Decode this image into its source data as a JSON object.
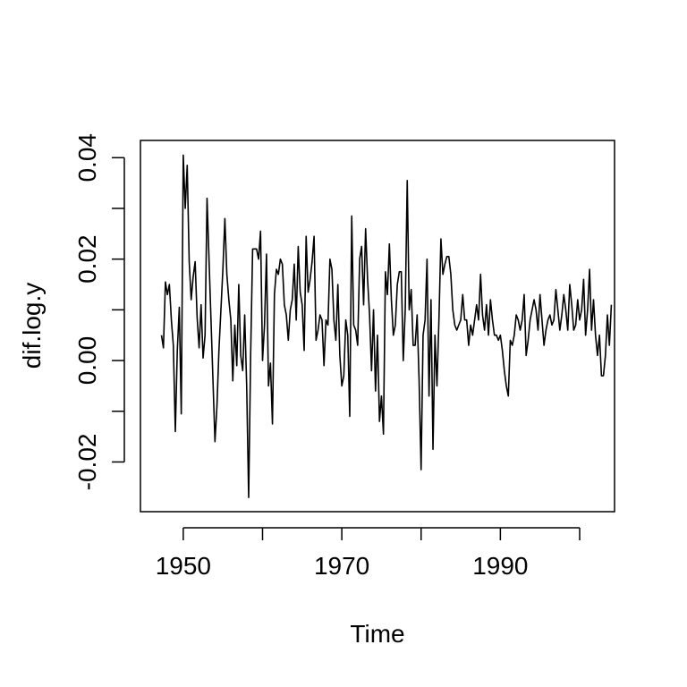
{
  "chart_data": {
    "type": "line",
    "title": "",
    "xlabel": "Time",
    "ylabel": "dif.log.y",
    "xlim": [
      1944.6,
      2004.4
    ],
    "ylim": [
      -0.0298,
      0.0434
    ],
    "x_ticks": [
      1950,
      1960,
      1970,
      1980,
      1990,
      2000
    ],
    "x_tick_labels": [
      "1950",
      "",
      "1970",
      "",
      "1990",
      ""
    ],
    "y_ticks": [
      -0.02,
      -0.01,
      0.0,
      0.01,
      0.02,
      0.03,
      0.04
    ],
    "y_tick_labels": [
      "-0.02",
      "",
      "0.00",
      "",
      "0.02",
      "",
      "0.04"
    ],
    "grid": false,
    "legend": "none",
    "line_color": "#000000",
    "series": [
      {
        "x_start": 1947.25,
        "x_step": 0.25,
        "values": [
          0.005,
          0.0025,
          0.0155,
          0.013,
          0.015,
          0.008,
          0.003,
          -0.014,
          0.002,
          0.0105,
          -0.0105,
          0.0405,
          0.03,
          0.0385,
          0.0195,
          0.012,
          0.0165,
          0.0195,
          0.0085,
          0.0025,
          0.011,
          0.0005,
          0.005,
          0.032,
          0.02,
          0.008,
          -0.004,
          -0.016,
          -0.009,
          0.002,
          0.01,
          0.018,
          0.028,
          0.017,
          0.012,
          0.008,
          -0.004,
          0.007,
          -0.001,
          0.015,
          0.001,
          -0.002,
          0.009,
          -0.005,
          -0.027,
          0.001,
          0.022,
          0.022,
          0.022,
          0.02,
          0.0255,
          0.0,
          0.007,
          0.021,
          -0.005,
          -0.0005,
          -0.0125,
          0.013,
          0.018,
          0.017,
          0.02,
          0.019,
          0.011,
          0.009,
          0.004,
          0.01,
          0.012,
          0.019,
          0.008,
          0.0225,
          0.0135,
          0.011,
          0.002,
          0.0245,
          0.0135,
          0.016,
          0.0195,
          0.0245,
          0.004,
          0.006,
          0.009,
          0.008,
          -0.001,
          0.008,
          0.007,
          0.02,
          0.018,
          0.008,
          0.004,
          0.015,
          0.001,
          -0.005,
          -0.003,
          0.008,
          0.005,
          -0.011,
          0.0285,
          0.007,
          0.006,
          0.003,
          0.02,
          0.0225,
          0.011,
          0.026,
          0.016,
          0.009,
          -0.002,
          0.01,
          -0.006,
          0.005,
          -0.012,
          -0.007,
          -0.0145,
          0.0175,
          0.013,
          0.023,
          0.012,
          0.005,
          0.007,
          0.015,
          0.0175,
          0.0175,
          0.0,
          0.01,
          0.0355,
          0.01,
          0.014,
          0.003,
          0.003,
          0.009,
          -0.004,
          -0.0215,
          0.005,
          0.008,
          0.02,
          -0.007,
          0.012,
          -0.0175,
          0.005,
          -0.005,
          0.008,
          0.024,
          0.017,
          0.019,
          0.0205,
          0.0205,
          0.017,
          0.01,
          0.007,
          0.006,
          0.007,
          0.008,
          0.013,
          0.008,
          0.008,
          0.003,
          0.007,
          0.005,
          0.008,
          0.011,
          0.008,
          0.017,
          0.009,
          0.006,
          0.011,
          0.005,
          0.012,
          0.008,
          0.005,
          0.005,
          0.004,
          0.005,
          0.002,
          -0.002,
          -0.005,
          -0.007,
          0.004,
          0.003,
          0.005,
          0.009,
          0.008,
          0.006,
          0.008,
          0.013,
          0.001,
          0.004,
          0.008,
          0.01,
          0.012,
          0.01,
          0.006,
          0.013,
          0.008,
          0.003,
          0.006,
          0.008,
          0.009,
          0.007,
          0.008,
          0.014,
          0.01,
          0.006,
          0.009,
          0.013,
          0.01,
          0.006,
          0.015,
          0.011,
          0.006,
          0.007,
          0.012,
          0.008,
          0.01,
          0.016,
          0.005,
          0.01,
          0.018,
          0.006,
          0.012,
          0.005,
          0.001,
          0.005,
          -0.003,
          -0.003,
          0.001,
          0.009,
          0.003,
          0.011
        ]
      }
    ]
  }
}
